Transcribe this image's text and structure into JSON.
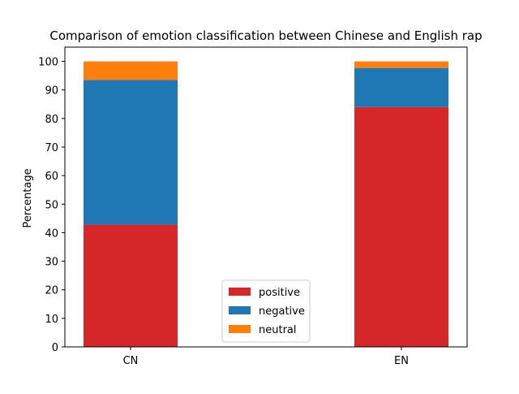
{
  "chart_data": {
    "type": "bar",
    "stacked": true,
    "title": "Comparison of emotion classification between Chinese and English rap",
    "xlabel": "",
    "ylabel": "Percentage",
    "categories": [
      "CN",
      "EN"
    ],
    "ylim": [
      0,
      105
    ],
    "yticks": [
      0,
      10,
      20,
      30,
      40,
      50,
      60,
      70,
      80,
      90,
      100
    ],
    "series": [
      {
        "name": "positive",
        "values": [
          42.8,
          84.0
        ],
        "color": "#d62728"
      },
      {
        "name": "negative",
        "values": [
          50.7,
          13.7
        ],
        "color": "#1f77b4"
      },
      {
        "name": "neutral",
        "values": [
          6.5,
          2.3
        ],
        "color": "#ff7f0e"
      }
    ],
    "legend_position": "lower center",
    "grid": false
  }
}
